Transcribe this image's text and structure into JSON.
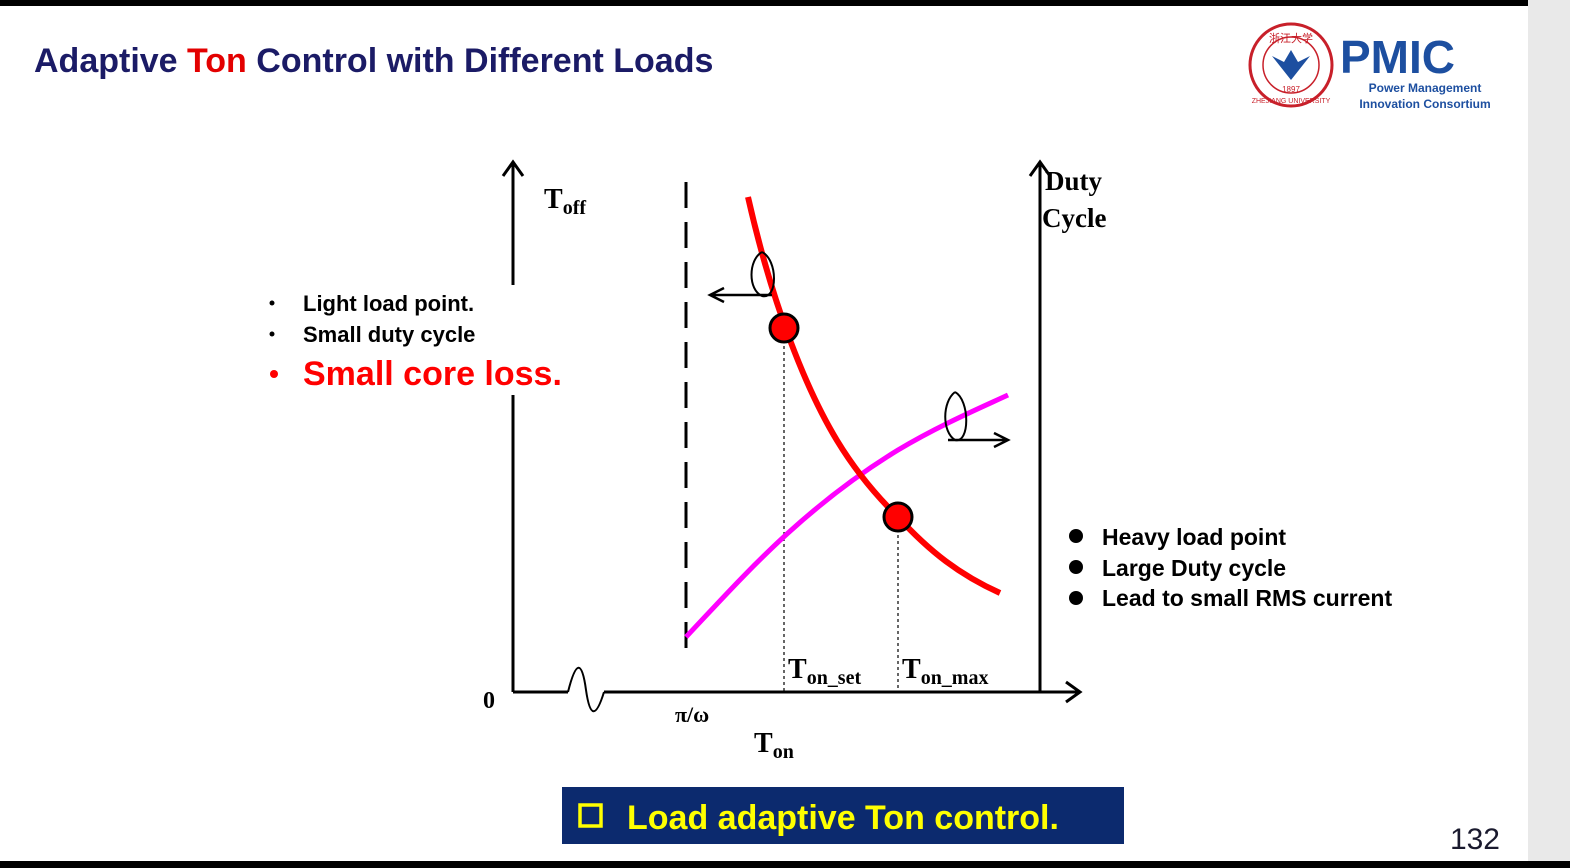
{
  "header": {
    "title": {
      "before": "Adaptive ",
      "highlight": "Ton",
      "after": " Control with Different Loads"
    },
    "logo": {
      "seal_text": "浙江大学",
      "seal_year": "1897",
      "seal_name": "ZHEJIANG UNIVERSITY",
      "brand": "PMIC",
      "line1": "Power Management",
      "line2": "Innovation Consortium"
    }
  },
  "diagram": {
    "left_axis": {
      "main": "T",
      "sub": "off"
    },
    "right_axis": {
      "line1": "Duty",
      "line2": "Cycle"
    },
    "origin": "0",
    "pi_omega": "π/ω",
    "x_axis": {
      "main": "T",
      "sub": "on"
    },
    "ton_set": {
      "main": "T",
      "sub": "on_set"
    },
    "ton_max": {
      "main": "T",
      "sub": "on_max"
    }
  },
  "light_load": {
    "items": [
      "Light load point.",
      "Small duty cycle"
    ],
    "emphasis": "Small core loss."
  },
  "heavy_load": {
    "items": [
      "Heavy load point",
      "Large Duty cycle",
      "Lead to small RMS current"
    ]
  },
  "banner": "Load adaptive Ton control.",
  "page_number": "132"
}
